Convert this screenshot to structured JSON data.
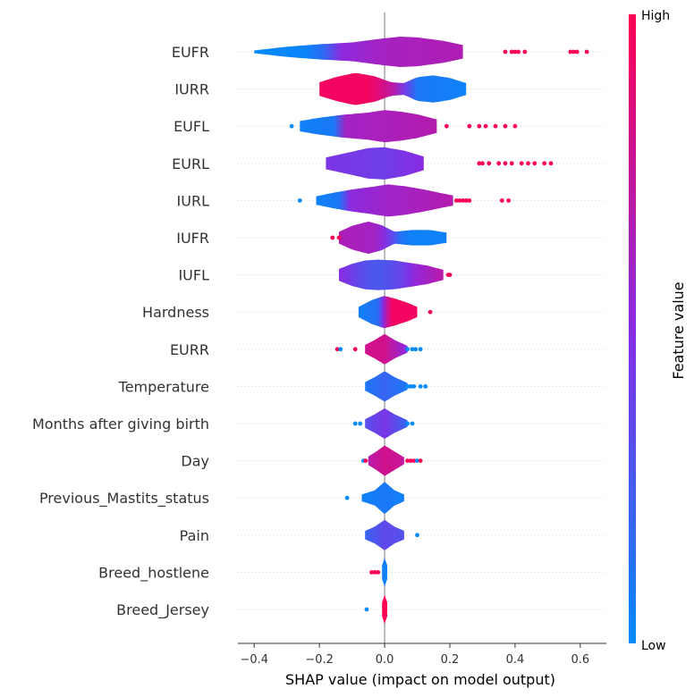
{
  "chart_data": {
    "type": "violin",
    "xlabel": "SHAP value (impact on model output)",
    "xlim": [
      -0.45,
      0.68
    ],
    "xticks": [
      -0.4,
      -0.2,
      0.0,
      0.2,
      0.4,
      0.6
    ],
    "xtick_labels": [
      "−0.4",
      "−0.2",
      "0.0",
      "0.2",
      "0.4",
      "0.6"
    ],
    "grid": "dotted horizontal row lines",
    "colorbar": {
      "title": "Feature value",
      "high_label": "High",
      "low_label": "Low",
      "high_color": "#ff0052",
      "mid_color": "#8a2be2",
      "low_color": "#008bfb"
    },
    "features": [
      {
        "name": "EUFR",
        "range": [
          -0.4,
          0.24
        ],
        "width_profile": [
          [
            -0.4,
            0.08
          ],
          [
            -0.3,
            0.3
          ],
          [
            -0.2,
            0.45
          ],
          [
            -0.1,
            0.55
          ],
          [
            0.0,
            0.8
          ],
          [
            0.05,
            0.9
          ],
          [
            0.1,
            0.85
          ],
          [
            0.18,
            0.65
          ],
          [
            0.24,
            0.4
          ]
        ],
        "color_profile": [
          [
            -0.4,
            0.0
          ],
          [
            -0.2,
            0.05
          ],
          [
            -0.15,
            0.5
          ],
          [
            0.0,
            0.62
          ],
          [
            0.24,
            0.66
          ]
        ],
        "outliers": [
          {
            "x": 0.37,
            "v": 1
          },
          {
            "x": 0.39,
            "v": 1
          },
          {
            "x": 0.4,
            "v": 1
          },
          {
            "x": 0.41,
            "v": 1
          },
          {
            "x": 0.43,
            "v": 1
          },
          {
            "x": 0.57,
            "v": 1
          },
          {
            "x": 0.58,
            "v": 1
          },
          {
            "x": 0.59,
            "v": 1
          },
          {
            "x": 0.62,
            "v": 1
          }
        ]
      },
      {
        "name": "IURR",
        "range": [
          -0.2,
          0.25
        ],
        "width_profile": [
          [
            -0.2,
            0.4
          ],
          [
            -0.15,
            0.7
          ],
          [
            -0.09,
            0.95
          ],
          [
            -0.03,
            0.75
          ],
          [
            0.02,
            0.4
          ],
          [
            0.06,
            0.35
          ],
          [
            0.1,
            0.7
          ],
          [
            0.15,
            0.8
          ],
          [
            0.2,
            0.65
          ],
          [
            0.25,
            0.35
          ]
        ],
        "color_profile": [
          [
            -0.2,
            0.95
          ],
          [
            -0.05,
            0.95
          ],
          [
            0.02,
            0.75
          ],
          [
            0.07,
            0.35
          ],
          [
            0.1,
            0.1
          ],
          [
            0.25,
            0.05
          ]
        ],
        "outliers": []
      },
      {
        "name": "EUFL",
        "range": [
          -0.26,
          0.16
        ],
        "width_profile": [
          [
            -0.26,
            0.3
          ],
          [
            -0.2,
            0.5
          ],
          [
            -0.14,
            0.65
          ],
          [
            -0.05,
            0.8
          ],
          [
            0.0,
            0.95
          ],
          [
            0.05,
            0.85
          ],
          [
            0.1,
            0.7
          ],
          [
            0.16,
            0.4
          ]
        ],
        "color_profile": [
          [
            -0.26,
            0.05
          ],
          [
            -0.15,
            0.1
          ],
          [
            -0.13,
            0.6
          ],
          [
            0.16,
            0.68
          ]
        ],
        "outliers": [
          {
            "x": -0.285,
            "v": 0
          },
          {
            "x": 0.19,
            "v": 1
          },
          {
            "x": 0.26,
            "v": 1
          },
          {
            "x": 0.29,
            "v": 1
          },
          {
            "x": 0.31,
            "v": 1
          },
          {
            "x": 0.34,
            "v": 1
          },
          {
            "x": 0.37,
            "v": 1
          },
          {
            "x": 0.4,
            "v": 1
          }
        ]
      },
      {
        "name": "EURL",
        "range": [
          -0.18,
          0.12
        ],
        "width_profile": [
          [
            -0.18,
            0.35
          ],
          [
            -0.12,
            0.6
          ],
          [
            -0.05,
            0.9
          ],
          [
            0.0,
            0.95
          ],
          [
            0.06,
            0.75
          ],
          [
            0.12,
            0.4
          ]
        ],
        "color_profile": [
          [
            -0.18,
            0.45
          ],
          [
            0.0,
            0.4
          ],
          [
            0.12,
            0.5
          ]
        ],
        "outliers": [
          {
            "x": 0.29,
            "v": 1
          },
          {
            "x": 0.3,
            "v": 1
          },
          {
            "x": 0.32,
            "v": 1
          },
          {
            "x": 0.35,
            "v": 1
          },
          {
            "x": 0.37,
            "v": 1
          },
          {
            "x": 0.39,
            "v": 1
          },
          {
            "x": 0.42,
            "v": 1
          },
          {
            "x": 0.44,
            "v": 1
          },
          {
            "x": 0.46,
            "v": 1
          },
          {
            "x": 0.49,
            "v": 1
          },
          {
            "x": 0.51,
            "v": 1
          }
        ]
      },
      {
        "name": "IURL",
        "range": [
          -0.21,
          0.21
        ],
        "width_profile": [
          [
            -0.21,
            0.25
          ],
          [
            -0.16,
            0.45
          ],
          [
            -0.1,
            0.65
          ],
          [
            -0.04,
            0.8
          ],
          [
            0.01,
            0.95
          ],
          [
            0.06,
            0.85
          ],
          [
            0.12,
            0.65
          ],
          [
            0.17,
            0.45
          ],
          [
            0.21,
            0.3
          ]
        ],
        "color_profile": [
          [
            -0.21,
            0.05
          ],
          [
            -0.14,
            0.1
          ],
          [
            -0.12,
            0.5
          ],
          [
            0.0,
            0.58
          ],
          [
            0.21,
            0.68
          ]
        ],
        "outliers": [
          {
            "x": -0.26,
            "v": 0
          },
          {
            "x": 0.22,
            "v": 1
          },
          {
            "x": 0.23,
            "v": 1
          },
          {
            "x": 0.24,
            "v": 1
          },
          {
            "x": 0.25,
            "v": 1
          },
          {
            "x": 0.26,
            "v": 1
          },
          {
            "x": 0.36,
            "v": 1
          },
          {
            "x": 0.38,
            "v": 1
          }
        ]
      },
      {
        "name": "IUFR",
        "range": [
          -0.14,
          0.19
        ],
        "width_profile": [
          [
            -0.14,
            0.35
          ],
          [
            -0.1,
            0.7
          ],
          [
            -0.05,
            0.95
          ],
          [
            -0.01,
            0.75
          ],
          [
            0.03,
            0.35
          ],
          [
            0.08,
            0.45
          ],
          [
            0.14,
            0.45
          ],
          [
            0.19,
            0.3
          ]
        ],
        "color_profile": [
          [
            -0.14,
            0.65
          ],
          [
            -0.02,
            0.6
          ],
          [
            0.03,
            0.3
          ],
          [
            0.06,
            0.05
          ],
          [
            0.19,
            0.05
          ]
        ],
        "outliers": [
          {
            "x": -0.16,
            "v": 1
          },
          {
            "x": -0.14,
            "v": 1
          }
        ]
      },
      {
        "name": "IUFL",
        "range": [
          -0.14,
          0.18
        ],
        "width_profile": [
          [
            -0.14,
            0.35
          ],
          [
            -0.1,
            0.65
          ],
          [
            -0.06,
            0.85
          ],
          [
            -0.02,
            0.9
          ],
          [
            0.03,
            0.85
          ],
          [
            0.08,
            0.7
          ],
          [
            0.13,
            0.55
          ],
          [
            0.18,
            0.3
          ]
        ],
        "color_profile": [
          [
            -0.14,
            0.5
          ],
          [
            -0.08,
            0.35
          ],
          [
            -0.02,
            0.25
          ],
          [
            0.04,
            0.35
          ],
          [
            0.1,
            0.55
          ],
          [
            0.18,
            0.7
          ]
        ],
        "outliers": [
          {
            "x": 0.195,
            "v": 1
          },
          {
            "x": 0.2,
            "v": 1
          }
        ]
      },
      {
        "name": "Hardness",
        "range": [
          -0.08,
          0.1
        ],
        "width_profile": [
          [
            -0.08,
            0.3
          ],
          [
            -0.04,
            0.7
          ],
          [
            -0.01,
            0.9
          ],
          [
            0.0,
            0.95
          ],
          [
            0.03,
            0.8
          ],
          [
            0.07,
            0.55
          ],
          [
            0.1,
            0.3
          ]
        ],
        "color_profile": [
          [
            -0.08,
            0.05
          ],
          [
            -0.02,
            0.15
          ],
          [
            0.0,
            0.6
          ],
          [
            0.02,
            0.95
          ],
          [
            0.1,
            0.95
          ]
        ],
        "outliers": [
          {
            "x": 0.14,
            "v": 1
          }
        ]
      },
      {
        "name": "EURR",
        "range": [
          -0.06,
          0.07
        ],
        "width_profile": [
          [
            -0.06,
            0.25
          ],
          [
            -0.03,
            0.55
          ],
          [
            0.0,
            0.9
          ],
          [
            0.03,
            0.55
          ],
          [
            0.07,
            0.2
          ]
        ],
        "color_profile": [
          [
            -0.06,
            0.8
          ],
          [
            0.0,
            0.8
          ],
          [
            0.07,
            0.5
          ]
        ],
        "outliers": [
          {
            "x": -0.145,
            "v": 1
          },
          {
            "x": -0.135,
            "v": 0
          },
          {
            "x": -0.09,
            "v": 1
          },
          {
            "x": 0.07,
            "v": 0
          },
          {
            "x": 0.085,
            "v": 0
          },
          {
            "x": 0.095,
            "v": 0
          },
          {
            "x": 0.11,
            "v": 0
          }
        ]
      },
      {
        "name": "Temperature",
        "range": [
          -0.06,
          0.07
        ],
        "width_profile": [
          [
            -0.06,
            0.25
          ],
          [
            -0.03,
            0.55
          ],
          [
            0.0,
            0.9
          ],
          [
            0.03,
            0.55
          ],
          [
            0.07,
            0.2
          ]
        ],
        "color_profile": [
          [
            -0.06,
            0.1
          ],
          [
            0.0,
            0.2
          ],
          [
            0.07,
            0.1
          ]
        ],
        "outliers": [
          {
            "x": 0.07,
            "v": 0
          },
          {
            "x": 0.08,
            "v": 0
          },
          {
            "x": 0.09,
            "v": 0
          },
          {
            "x": 0.11,
            "v": 0
          },
          {
            "x": 0.125,
            "v": 0
          }
        ]
      },
      {
        "name": "Months after giving birth",
        "range": [
          -0.06,
          0.07
        ],
        "width_profile": [
          [
            -0.06,
            0.25
          ],
          [
            -0.03,
            0.55
          ],
          [
            0.0,
            0.9
          ],
          [
            0.03,
            0.55
          ],
          [
            0.07,
            0.2
          ]
        ],
        "color_profile": [
          [
            -0.06,
            0.3
          ],
          [
            0.0,
            0.45
          ],
          [
            0.07,
            0.2
          ]
        ],
        "outliers": [
          {
            "x": -0.09,
            "v": 0
          },
          {
            "x": -0.075,
            "v": 0
          },
          {
            "x": 0.07,
            "v": 0
          },
          {
            "x": 0.085,
            "v": 0
          }
        ]
      },
      {
        "name": "Day",
        "range": [
          -0.05,
          0.06
        ],
        "width_profile": [
          [
            -0.05,
            0.25
          ],
          [
            -0.025,
            0.55
          ],
          [
            0.0,
            0.9
          ],
          [
            0.03,
            0.55
          ],
          [
            0.06,
            0.2
          ]
        ],
        "color_profile": [
          [
            -0.05,
            0.7
          ],
          [
            0.0,
            0.8
          ],
          [
            0.06,
            0.75
          ]
        ],
        "outliers": [
          {
            "x": -0.065,
            "v": 0
          },
          {
            "x": -0.058,
            "v": 1
          },
          {
            "x": 0.07,
            "v": 1
          },
          {
            "x": 0.08,
            "v": 1
          },
          {
            "x": 0.09,
            "v": 1
          },
          {
            "x": 0.1,
            "v": 0
          },
          {
            "x": 0.11,
            "v": 1
          }
        ]
      },
      {
        "name": "Previous_Mastits_status",
        "range": [
          -0.07,
          0.06
        ],
        "width_profile": [
          [
            -0.07,
            0.2
          ],
          [
            -0.03,
            0.45
          ],
          [
            0.0,
            0.95
          ],
          [
            0.03,
            0.45
          ],
          [
            0.06,
            0.2
          ]
        ],
        "color_profile": [
          [
            -0.07,
            0.05
          ],
          [
            0.0,
            0.1
          ],
          [
            0.06,
            0.05
          ]
        ],
        "outliers": [
          {
            "x": -0.115,
            "v": 0
          }
        ]
      },
      {
        "name": "Pain",
        "range": [
          -0.06,
          0.06
        ],
        "width_profile": [
          [
            -0.06,
            0.25
          ],
          [
            -0.03,
            0.5
          ],
          [
            0.0,
            0.9
          ],
          [
            0.03,
            0.5
          ],
          [
            0.06,
            0.25
          ]
        ],
        "color_profile": [
          [
            -0.06,
            0.2
          ],
          [
            0.0,
            0.35
          ],
          [
            0.06,
            0.3
          ]
        ],
        "outliers": [
          {
            "x": 0.1,
            "v": 0
          }
        ]
      },
      {
        "name": "Breed_hostlene",
        "range": [
          -0.008,
          0.008
        ],
        "width_profile": [
          [
            -0.008,
            0.4
          ],
          [
            0.0,
            0.85
          ],
          [
            0.008,
            0.4
          ]
        ],
        "color_profile": [
          [
            -0.008,
            0.05
          ],
          [
            0.008,
            0.05
          ]
        ],
        "outliers": [
          {
            "x": -0.04,
            "v": 1
          },
          {
            "x": -0.03,
            "v": 1
          },
          {
            "x": -0.02,
            "v": 1
          }
        ]
      },
      {
        "name": "Breed_Jersey",
        "range": [
          -0.008,
          0.008
        ],
        "width_profile": [
          [
            -0.008,
            0.4
          ],
          [
            0.0,
            0.85
          ],
          [
            0.008,
            0.4
          ]
        ],
        "color_profile": [
          [
            -0.008,
            1.0
          ],
          [
            0.008,
            1.0
          ]
        ],
        "outliers": [
          {
            "x": -0.055,
            "v": 0
          }
        ]
      }
    ]
  }
}
